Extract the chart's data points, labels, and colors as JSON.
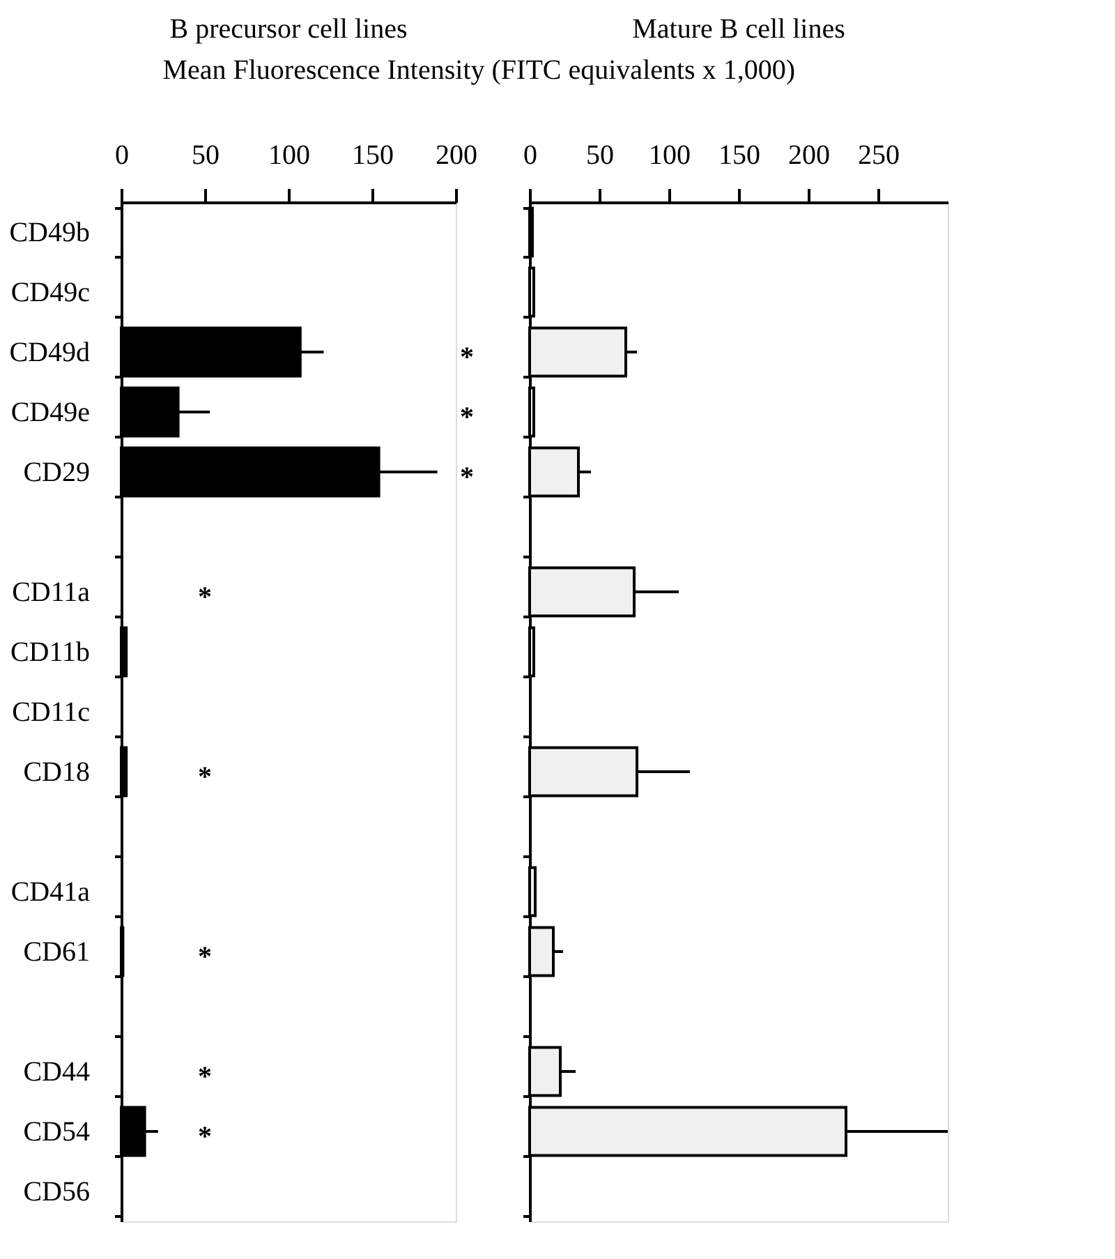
{
  "chart_data": [
    {
      "type": "bar",
      "orientation": "horizontal",
      "title": "B precursor cell lines",
      "xlabel": "Mean Fluorescence Intensity (FITC equivalents x 1,000)",
      "categories": [
        "CD49b",
        "CD49c",
        "CD49d",
        "CD49e",
        "CD29",
        null,
        "CD11a",
        "CD11b",
        "CD11c",
        "CD18",
        null,
        "CD41a",
        "CD61",
        null,
        "CD44",
        "CD54",
        "CD56"
      ],
      "series": [
        {
          "color": "#000000",
          "values": [
            0,
            0,
            107,
            34,
            154,
            null,
            0,
            3,
            0,
            3,
            null,
            0,
            1,
            null,
            0,
            14,
            0
          ],
          "errors": [
            null,
            null,
            [
              107,
              121
            ],
            [
              34,
              53
            ],
            [
              154,
              189
            ],
            null,
            null,
            null,
            null,
            null,
            null,
            null,
            null,
            null,
            null,
            [
              14,
              22
            ],
            null
          ]
        }
      ],
      "xlim": [
        0,
        200
      ],
      "xticks": [
        0,
        50,
        100,
        150,
        200
      ],
      "grid": false,
      "value_labels": [
        null,
        null,
        "*",
        "*",
        "*",
        null,
        "*",
        null,
        null,
        "*",
        null,
        null,
        "*",
        null,
        "*",
        "*",
        null
      ]
    },
    {
      "type": "bar",
      "orientation": "horizontal",
      "title": "Mature B cell lines",
      "tick_labels": "x",
      "categories": [
        null,
        null,
        null,
        null,
        null,
        null,
        null,
        null,
        null,
        null,
        null,
        null,
        null,
        null,
        null,
        null,
        null
      ],
      "series": [
        {
          "color": "#f0f0f0",
          "values": [
            2,
            3,
            69,
            3,
            35,
            null,
            75,
            3,
            0,
            77,
            null,
            4,
            17,
            null,
            22,
            227,
            0
          ],
          "errors": [
            null,
            null,
            [
              69,
              77
            ],
            null,
            [
              35,
              44
            ],
            null,
            [
              75,
              107
            ],
            null,
            null,
            [
              77,
              115
            ],
            null,
            null,
            [
              17,
              24
            ],
            null,
            [
              22,
              33
            ],
            [
              227,
              300
            ],
            null
          ]
        }
      ],
      "xlim": [
        0,
        300
      ],
      "xticks": [
        0,
        50,
        100,
        150,
        200,
        250
      ],
      "grid": false
    }
  ]
}
